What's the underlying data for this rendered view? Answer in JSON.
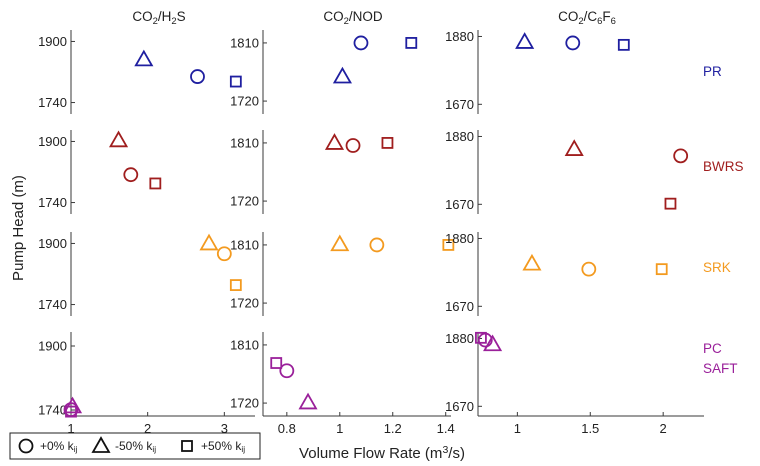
{
  "chart_data": {
    "type": "scatter",
    "xlabel": "Volume Flow Rate (m³/s)",
    "ylabel": "Pump Head (m)",
    "columns": [
      {
        "title": "CO₂/H₂S",
        "xlim": [
          1,
          3.4
        ],
        "xticks": [
          "1",
          "2",
          "3"
        ],
        "xtick_values": [
          1,
          2,
          3
        ]
      },
      {
        "title": "CO₂/NOD",
        "xlim": [
          0.71,
          1.42
        ],
        "xticks": [
          "0.8",
          "1",
          "1.2",
          "1.4"
        ],
        "xtick_values": [
          0.8,
          1.0,
          1.2,
          1.4
        ]
      },
      {
        "title": "CO₂/C₆F₆",
        "xlim": [
          0.73,
          2.28
        ],
        "xticks": [
          "1",
          "1.5",
          "2"
        ],
        "xtick_values": [
          1,
          1.5,
          2
        ]
      }
    ],
    "rows": [
      {
        "label": [
          "PR"
        ],
        "color": "#1f1fa0",
        "ylims": [
          [
            1710,
            1930
          ],
          [
            1700,
            1830
          ],
          [
            1640,
            1900
          ]
        ],
        "yticks": [
          [
            "1740",
            "1900"
          ],
          [
            "1720",
            "1810"
          ],
          [
            "1670",
            "1880"
          ]
        ],
        "ytick_values": [
          [
            1740,
            1900
          ],
          [
            1720,
            1810
          ],
          [
            1670,
            1880
          ]
        ],
        "points": [
          {
            "col": 0,
            "marker": "circle",
            "x": 2.65,
            "y": 1808
          },
          {
            "col": 0,
            "marker": "triangle",
            "x": 1.95,
            "y": 1853
          },
          {
            "col": 0,
            "marker": "square",
            "x": 3.15,
            "y": 1795
          },
          {
            "col": 1,
            "marker": "circle",
            "x": 1.08,
            "y": 1810
          },
          {
            "col": 1,
            "marker": "triangle",
            "x": 1.01,
            "y": 1758
          },
          {
            "col": 1,
            "marker": "square",
            "x": 1.27,
            "y": 1810
          },
          {
            "col": 2,
            "marker": "circle",
            "x": 1.38,
            "y": 1860
          },
          {
            "col": 2,
            "marker": "triangle",
            "x": 1.05,
            "y": 1863
          },
          {
            "col": 2,
            "marker": "square",
            "x": 1.73,
            "y": 1854
          }
        ]
      },
      {
        "label": [
          "BWRS"
        ],
        "color": "#a01e1e",
        "ylims": [
          [
            1710,
            1930
          ],
          [
            1700,
            1830
          ],
          [
            1640,
            1900
          ]
        ],
        "yticks": [
          [
            "1740",
            "1900"
          ],
          [
            "1720",
            "1810"
          ],
          [
            "1670",
            "1880"
          ]
        ],
        "ytick_values": [
          [
            1740,
            1900
          ],
          [
            1720,
            1810
          ],
          [
            1670,
            1880
          ]
        ],
        "points": [
          {
            "col": 0,
            "marker": "circle",
            "x": 1.78,
            "y": 1813
          },
          {
            "col": 0,
            "marker": "triangle",
            "x": 1.62,
            "y": 1903
          },
          {
            "col": 0,
            "marker": "square",
            "x": 2.1,
            "y": 1790
          },
          {
            "col": 1,
            "marker": "circle",
            "x": 1.05,
            "y": 1806
          },
          {
            "col": 1,
            "marker": "triangle",
            "x": 0.98,
            "y": 1810
          },
          {
            "col": 1,
            "marker": "square",
            "x": 1.18,
            "y": 1810
          },
          {
            "col": 2,
            "marker": "circle",
            "x": 2.12,
            "y": 1820
          },
          {
            "col": 2,
            "marker": "triangle",
            "x": 1.39,
            "y": 1841
          },
          {
            "col": 2,
            "marker": "square",
            "x": 2.05,
            "y": 1672
          }
        ]
      },
      {
        "label": [
          "SRK"
        ],
        "color": "#f39a1f",
        "ylims": [
          [
            1710,
            1930
          ],
          [
            1700,
            1830
          ],
          [
            1640,
            1900
          ]
        ],
        "yticks": [
          [
            "1740",
            "1900"
          ],
          [
            "1720",
            "1810"
          ],
          [
            "1670",
            "1880"
          ]
        ],
        "ytick_values": [
          [
            1740,
            1900
          ],
          [
            1720,
            1810
          ],
          [
            1670,
            1880
          ]
        ],
        "points": [
          {
            "col": 0,
            "marker": "circle",
            "x": 3.0,
            "y": 1873
          },
          {
            "col": 0,
            "marker": "triangle",
            "x": 2.8,
            "y": 1900
          },
          {
            "col": 0,
            "marker": "square",
            "x": 3.15,
            "y": 1791
          },
          {
            "col": 1,
            "marker": "circle",
            "x": 1.14,
            "y": 1810
          },
          {
            "col": 1,
            "marker": "triangle",
            "x": 1.0,
            "y": 1811
          },
          {
            "col": 1,
            "marker": "square",
            "x": 1.41,
            "y": 1810
          },
          {
            "col": 2,
            "marker": "circle",
            "x": 1.49,
            "y": 1785
          },
          {
            "col": 2,
            "marker": "triangle",
            "x": 1.1,
            "y": 1802
          },
          {
            "col": 2,
            "marker": "square",
            "x": 1.99,
            "y": 1785
          }
        ]
      },
      {
        "label": [
          "PC",
          "SAFT"
        ],
        "color": "#9a209a",
        "ylims": [
          [
            1725,
            1935
          ],
          [
            1700,
            1830
          ],
          [
            1640,
            1900
          ]
        ],
        "yticks": [
          [
            "1740",
            "1900"
          ],
          [
            "1720",
            "1810"
          ],
          [
            "1670",
            "1880"
          ]
        ],
        "ytick_values": [
          [
            1740,
            1900
          ],
          [
            1720,
            1810
          ],
          [
            1670,
            1880
          ]
        ],
        "points": [
          {
            "col": 0,
            "marker": "circle",
            "x": 1.0,
            "y": 1741
          },
          {
            "col": 0,
            "marker": "triangle",
            "x": 1.02,
            "y": 1749
          },
          {
            "col": 0,
            "marker": "square",
            "x": 1.0,
            "y": 1736
          },
          {
            "col": 1,
            "marker": "circle",
            "x": 0.8,
            "y": 1770
          },
          {
            "col": 1,
            "marker": "triangle",
            "x": 0.88,
            "y": 1721
          },
          {
            "col": 1,
            "marker": "square",
            "x": 0.76,
            "y": 1782
          },
          {
            "col": 2,
            "marker": "circle",
            "x": 0.78,
            "y": 1875
          },
          {
            "col": 2,
            "marker": "triangle",
            "x": 0.83,
            "y": 1862
          },
          {
            "col": 2,
            "marker": "square",
            "x": 0.75,
            "y": 1882
          }
        ]
      }
    ],
    "legend": {
      "placement": "bottom-left",
      "entries": [
        {
          "marker": "circle",
          "label": "+0% k",
          "sub": "ij"
        },
        {
          "marker": "triangle",
          "label": "-50% k",
          "sub": "ij"
        },
        {
          "marker": "square",
          "label": "+50% k",
          "sub": "ij"
        }
      ]
    },
    "grid": false
  }
}
